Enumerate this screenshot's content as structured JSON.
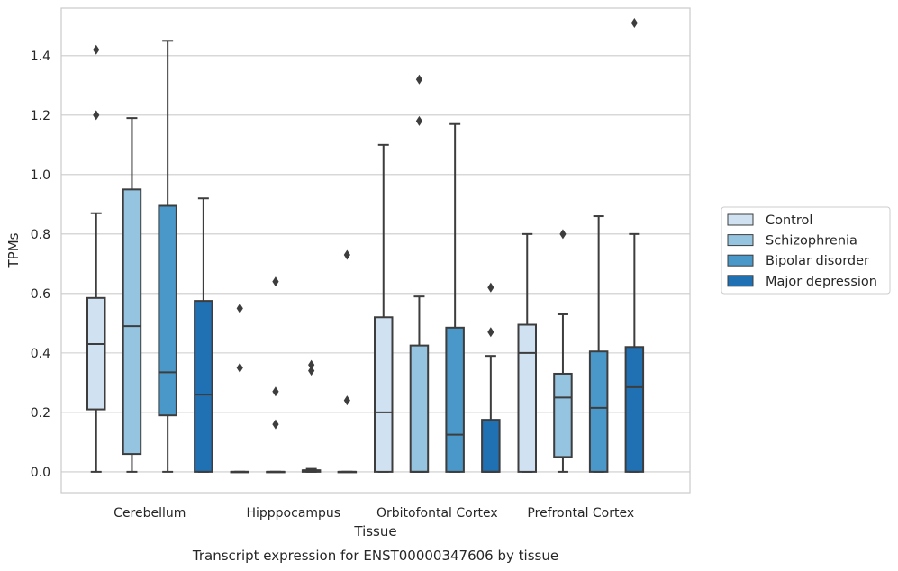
{
  "chart_data": {
    "type": "boxplot",
    "title": "Transcript expression for ENST00000347606 by tissue",
    "xlabel": "Tissue",
    "ylabel": "TPMs",
    "ylim": [
      -0.07,
      1.56
    ],
    "yticks": [
      "0.0",
      "0.2",
      "0.4",
      "0.6",
      "0.8",
      "1.0",
      "1.2",
      "1.4"
    ],
    "grid": "horizontal",
    "legend_position": "right",
    "categories": [
      "Cerebellum",
      "Hipppocampus",
      "Orbitofontal Cortex",
      "Prefrontal Cortex"
    ],
    "series": [
      {
        "name": "Control",
        "color": "#d0e1f2",
        "boxes": [
          {
            "whislo": 0.0,
            "q1": 0.21,
            "med": 0.43,
            "q3": 0.585,
            "whishi": 0.87,
            "fliers": [
              1.42,
              1.2
            ]
          },
          {
            "whislo": 0.0,
            "q1": 0.0,
            "med": 0.0,
            "q3": 0.0,
            "whishi": 0.0,
            "fliers": [
              0.55,
              0.35
            ]
          },
          {
            "whislo": 0.0,
            "q1": 0.0,
            "med": 0.2,
            "q3": 0.52,
            "whishi": 1.1,
            "fliers": []
          },
          {
            "whislo": 0.0,
            "q1": 0.0,
            "med": 0.4,
            "q3": 0.495,
            "whishi": 0.8,
            "fliers": []
          }
        ]
      },
      {
        "name": "Schizophrenia",
        "color": "#94c4df",
        "boxes": [
          {
            "whislo": 0.0,
            "q1": 0.06,
            "med": 0.49,
            "q3": 0.95,
            "whishi": 1.19,
            "fliers": []
          },
          {
            "whislo": 0.0,
            "q1": 0.0,
            "med": 0.0,
            "q3": 0.0,
            "whishi": 0.0,
            "fliers": [
              0.64,
              0.27,
              0.16
            ]
          },
          {
            "whislo": 0.0,
            "q1": 0.0,
            "med": 0.0,
            "q3": 0.425,
            "whishi": 0.59,
            "fliers": [
              1.32,
              1.18
            ]
          },
          {
            "whislo": 0.0,
            "q1": 0.05,
            "med": 0.25,
            "q3": 0.33,
            "whishi": 0.53,
            "fliers": [
              0.8
            ]
          }
        ]
      },
      {
        "name": "Bipolar disorder",
        "color": "#4a98c9",
        "boxes": [
          {
            "whislo": 0.0,
            "q1": 0.19,
            "med": 0.335,
            "q3": 0.895,
            "whishi": 1.45,
            "fliers": []
          },
          {
            "whislo": 0.0,
            "q1": 0.0,
            "med": 0.005,
            "q3": 0.005,
            "whishi": 0.01,
            "fliers": [
              0.36,
              0.34
            ]
          },
          {
            "whislo": 0.0,
            "q1": 0.0,
            "med": 0.125,
            "q3": 0.485,
            "whishi": 1.17,
            "fliers": []
          },
          {
            "whislo": 0.0,
            "q1": 0.0,
            "med": 0.215,
            "q3": 0.405,
            "whishi": 0.86,
            "fliers": []
          }
        ]
      },
      {
        "name": "Major depression",
        "color": "#2070b4",
        "boxes": [
          {
            "whislo": 0.0,
            "q1": 0.0,
            "med": 0.26,
            "q3": 0.575,
            "whishi": 0.92,
            "fliers": []
          },
          {
            "whislo": 0.0,
            "q1": 0.0,
            "med": 0.0,
            "q3": 0.0,
            "whishi": 0.0,
            "fliers": [
              0.73,
              0.24
            ]
          },
          {
            "whislo": 0.0,
            "q1": 0.0,
            "med": 0.0,
            "q3": 0.175,
            "whishi": 0.39,
            "fliers": [
              0.62,
              0.47
            ]
          },
          {
            "whislo": 0.0,
            "q1": 0.0,
            "med": 0.285,
            "q3": 0.42,
            "whishi": 0.8,
            "fliers": [
              1.51
            ]
          }
        ]
      }
    ]
  }
}
